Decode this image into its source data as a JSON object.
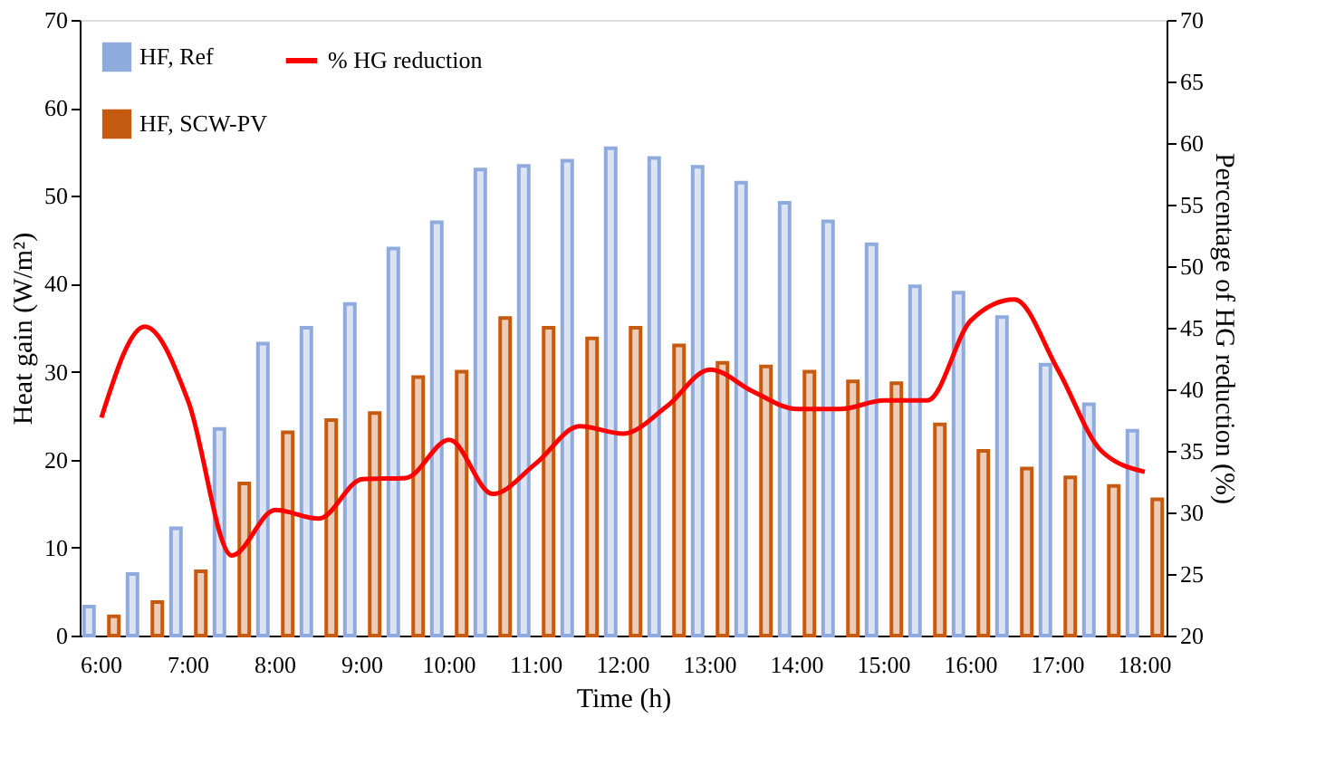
{
  "chart_data": {
    "type": "bar",
    "xlabel": "Time (h)",
    "ylabel": "Heat gain (W/m²)",
    "y2label": "Percentage of HG reduction (%)",
    "categories": [
      "6:00",
      null,
      "7:00",
      null,
      "8:00",
      null,
      "9:00",
      null,
      "10:00",
      null,
      "11:00",
      null,
      "12:00",
      null,
      "13:00",
      null,
      "14:00",
      null,
      "15:00",
      null,
      "16:00",
      null,
      "17:00",
      null,
      "18:00"
    ],
    "series": [
      {
        "name": "HF, Ref",
        "color": "#8faadc",
        "values": [
          3.3,
          7,
          12.2,
          23.5,
          33.2,
          35,
          37.7,
          44,
          47,
          53,
          53.4,
          54,
          55.4,
          54.3,
          53.3,
          51.5,
          49.2,
          47.1,
          44.5,
          39.7,
          39,
          36.2,
          30.8,
          26.3,
          23.3
        ]
      },
      {
        "name": "HF, SCW-PV",
        "color": "#c55a11",
        "values": [
          2.2,
          3.8,
          7.3,
          17.3,
          23.1,
          24.5,
          25.3,
          29.4,
          30,
          36.1,
          35,
          33.8,
          35,
          33,
          31,
          30.6,
          30,
          28.9,
          28.7,
          24,
          21,
          19,
          18,
          17,
          15.5
        ]
      },
      {
        "name": "% HG reduction",
        "type": "line",
        "axis": "y2",
        "color": "#ff0000",
        "values": [
          37.7,
          45.1,
          39,
          26.5,
          30.2,
          29.5,
          32.7,
          32.8,
          35.9,
          31.5,
          34,
          37,
          36.4,
          38.6,
          41.6,
          39.8,
          38.4,
          38.4,
          39.1,
          39.1,
          45.6,
          47.3,
          41.6,
          35,
          33.3
        ]
      }
    ],
    "ylim": [
      0,
      70
    ],
    "yticks": [
      0,
      10,
      20,
      30,
      40,
      50,
      60,
      70
    ],
    "y2lim": [
      20,
      70
    ],
    "y2ticks": [
      20,
      25,
      30,
      35,
      40,
      45,
      50,
      55,
      60,
      65,
      70
    ],
    "legend": "top left",
    "grid": false
  }
}
